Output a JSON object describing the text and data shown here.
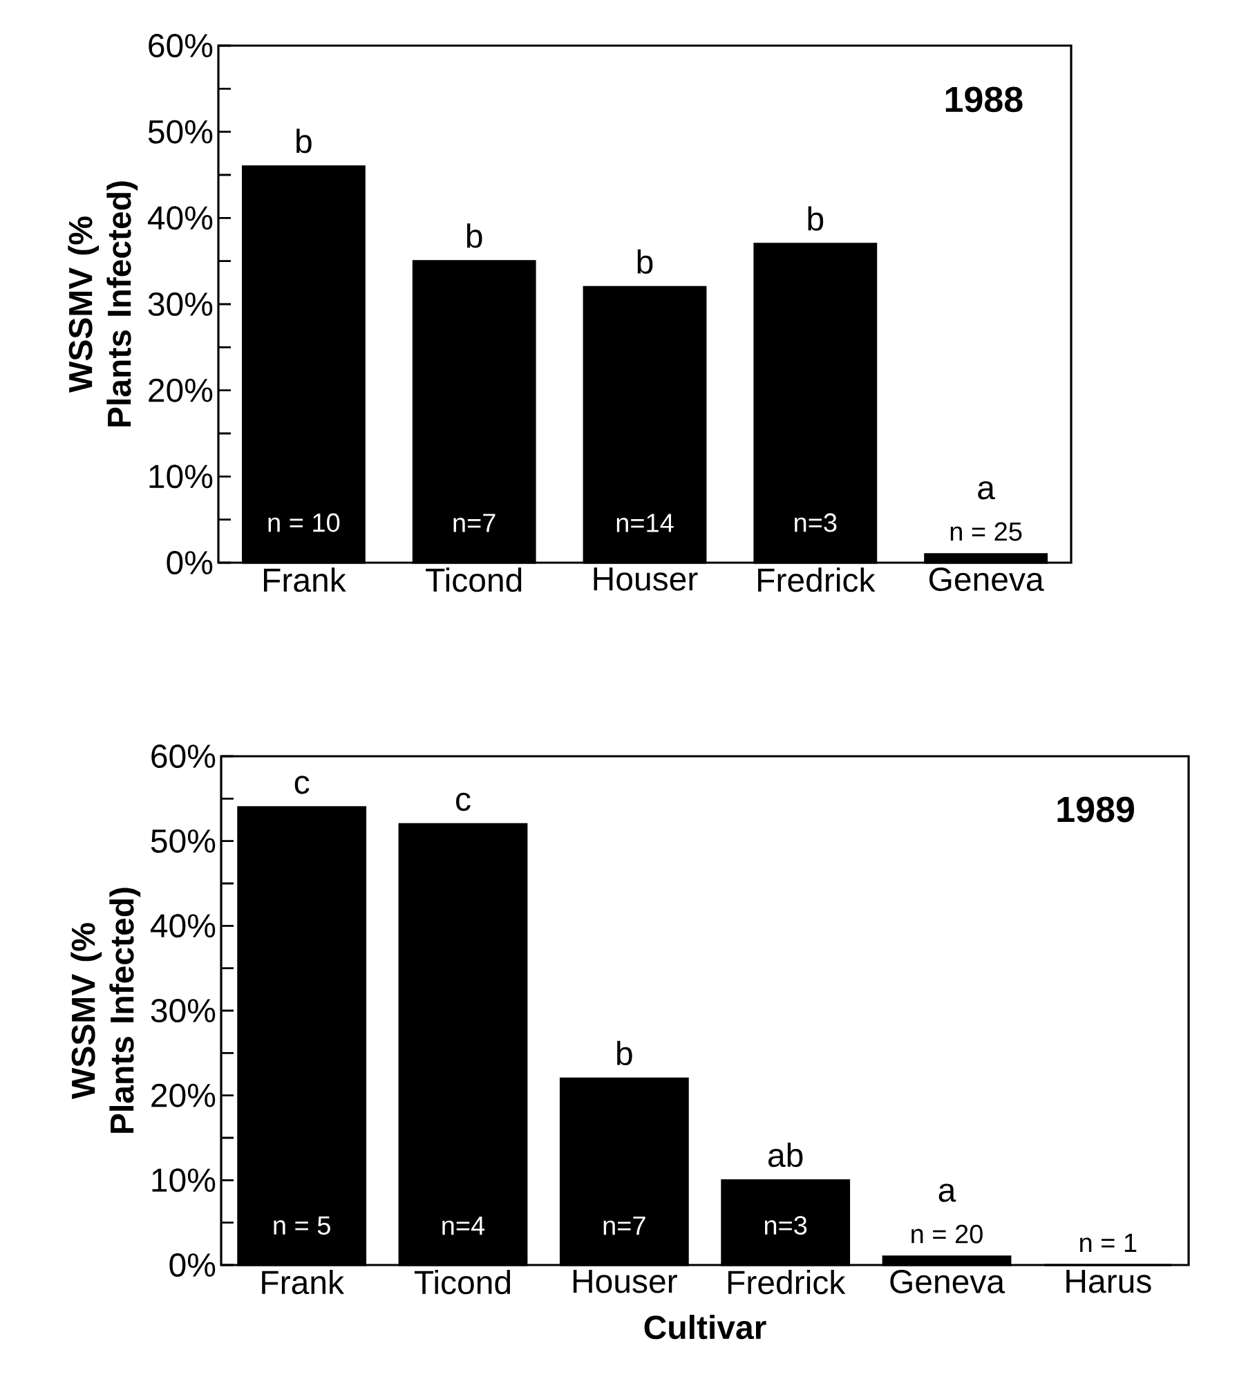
{
  "chart_data": [
    {
      "type": "bar",
      "title": "1988",
      "ylabel": "WSSMV (% Plants Infected)",
      "categories": [
        "Frank",
        "Ticond",
        "Houser",
        "Fredrick",
        "Geneva"
      ],
      "values": [
        46,
        35,
        32,
        37,
        1
      ],
      "color": "#000000",
      "ylim": [
        0,
        60
      ],
      "yticks": [
        {
          "value": 0,
          "label": "0%"
        },
        {
          "value": 5,
          "label": null
        },
        {
          "value": 10,
          "label": "10%"
        },
        {
          "value": 15,
          "label": null
        },
        {
          "value": 20,
          "label": "20%"
        },
        {
          "value": 25,
          "label": null
        },
        {
          "value": 30,
          "label": "30%"
        },
        {
          "value": 35,
          "label": null
        },
        {
          "value": 40,
          "label": "40%"
        },
        {
          "value": 45,
          "label": null
        },
        {
          "value": 50,
          "label": "50%"
        },
        {
          "value": 55,
          "label": null
        },
        {
          "value": 60,
          "label": "60%"
        }
      ],
      "annotations": [
        {
          "text": "b",
          "x": "Frank",
          "y": 46
        },
        {
          "text": "b",
          "x": "Ticond",
          "y": 35
        },
        {
          "text": "b",
          "x": "Houser",
          "y": 32
        },
        {
          "text": "b",
          "x": "Fredrick",
          "y": 37
        },
        {
          "text": "a",
          "x": "Geneva",
          "y": 1
        },
        "n = 10",
        "n=7",
        "n=14",
        "n=3",
        "n = 25"
      ]
    },
    {
      "type": "bar",
      "title": "1989",
      "ylabel": "WSSMV (% Plants Infected)",
      "xlabel": "Cultivar",
      "categories": [
        "Frank",
        "Ticond",
        "Houser",
        "Fredrick",
        "Geneva",
        "Harus"
      ],
      "values": [
        54,
        52,
        22,
        10,
        1,
        0
      ],
      "color": "#000000",
      "ylim": [
        0,
        60
      ],
      "yticks": [
        {
          "value": 0,
          "label": "0%"
        },
        {
          "value": 5,
          "label": null
        },
        {
          "value": 10,
          "label": "10%"
        },
        {
          "value": 15,
          "label": null
        },
        {
          "value": 20,
          "label": "20%"
        },
        {
          "value": 25,
          "label": null
        },
        {
          "value": 30,
          "label": "30%"
        },
        {
          "value": 35,
          "label": null
        },
        {
          "value": 40,
          "label": "40%"
        },
        {
          "value": 45,
          "label": null
        },
        {
          "value": 50,
          "label": "50%"
        },
        {
          "value": 55,
          "label": null
        },
        {
          "value": 60,
          "label": "60%"
        }
      ],
      "annotations": [
        {
          "text": "c",
          "x": "Frank",
          "y": 54
        },
        {
          "text": "c",
          "x": "Ticond",
          "y": 52
        },
        {
          "text": "b",
          "x": "Houser",
          "y": 22
        },
        {
          "text": "ab",
          "x": "Fredrick",
          "y": 10
        },
        {
          "text": "a",
          "x": "Geneva",
          "y": 1
        },
        "n = 5",
        "n=4",
        "n=7",
        "n=3",
        "n = 20",
        "n = 1"
      ]
    }
  ]
}
